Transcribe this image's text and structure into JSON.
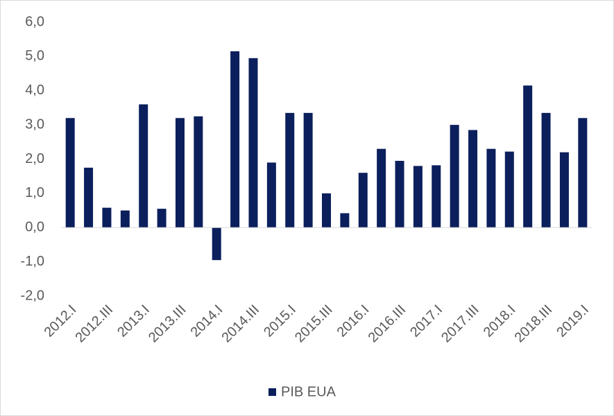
{
  "chart_data": {
    "type": "bar",
    "categories": [
      "2012.I",
      null,
      "2012.III",
      null,
      "2013.I",
      null,
      "2013.III",
      null,
      "2014.I",
      null,
      "2014.III",
      null,
      "2015.I",
      null,
      "2015.III",
      null,
      "2016.I",
      null,
      "2016.III",
      null,
      "2017.I",
      null,
      "2017.III",
      null,
      "2018.I",
      null,
      "2018.III",
      null,
      "2019.I"
    ],
    "series": [
      {
        "name": "PIB EUA",
        "color": "#0b1f5c",
        "values": [
          3.2,
          1.75,
          0.58,
          0.5,
          3.6,
          0.55,
          3.2,
          3.25,
          -0.95,
          5.15,
          4.95,
          1.9,
          3.35,
          3.35,
          1.0,
          0.42,
          1.6,
          2.3,
          1.95,
          1.8,
          1.82,
          3.0,
          2.85,
          2.3,
          2.22,
          4.15,
          3.35,
          2.2,
          3.2
        ]
      }
    ],
    "ylim": [
      -2,
      6
    ],
    "yticks": [
      {
        "value": -2,
        "label": "-2,0"
      },
      {
        "value": -1,
        "label": "-1,0"
      },
      {
        "value": 0,
        "label": "0,0"
      },
      {
        "value": 1,
        "label": "1,0"
      },
      {
        "value": 2,
        "label": "2,0"
      },
      {
        "value": 3,
        "label": "3,0"
      },
      {
        "value": 4,
        "label": "4,0"
      },
      {
        "value": 5,
        "label": "5,0"
      },
      {
        "value": 6,
        "label": "6,0"
      }
    ],
    "grid": false,
    "legend": "bottom"
  }
}
